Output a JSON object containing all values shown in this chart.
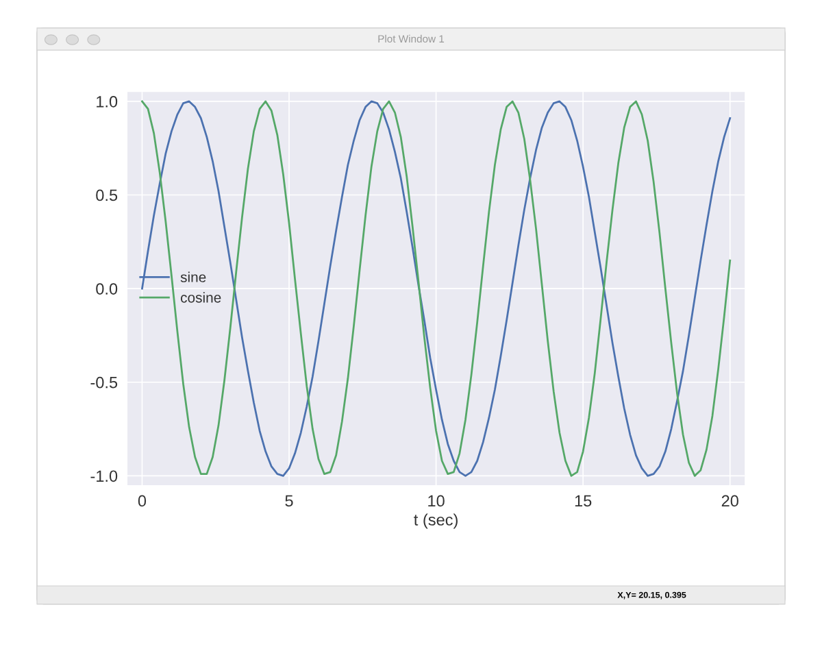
{
  "chart_data": {
    "type": "line",
    "title": "Plot Window 1",
    "xlabel": "t (sec)",
    "annotations": [
      "X,Y= 20.15, 0.395"
    ],
    "x": [
      0,
      0.2,
      0.4,
      0.6,
      0.8,
      1,
      1.2,
      1.4,
      1.6,
      1.8,
      2,
      2.2,
      2.4,
      2.6,
      2.8,
      3,
      3.2,
      3.4,
      3.6,
      3.8,
      4,
      4.2,
      4.4,
      4.6,
      4.8,
      5,
      5.2,
      5.4,
      5.6,
      5.8,
      6,
      6.2,
      6.4,
      6.6,
      6.8,
      7,
      7.2,
      7.4,
      7.6,
      7.8,
      8,
      8.2,
      8.4,
      8.6,
      8.8,
      9,
      9.2,
      9.4,
      9.6,
      9.8,
      10,
      10.2,
      10.4,
      10.6,
      10.8,
      11,
      11.2,
      11.4,
      11.6,
      11.8,
      12,
      12.2,
      12.4,
      12.6,
      12.8,
      13,
      13.2,
      13.4,
      13.6,
      13.8,
      14,
      14.2,
      14.4,
      14.6,
      14.8,
      15,
      15.2,
      15.4,
      15.6,
      15.8,
      16,
      16.2,
      16.4,
      16.6,
      16.8,
      17,
      17.2,
      17.4,
      17.6,
      17.8,
      18,
      18.2,
      18.4,
      18.6,
      18.8,
      19,
      19.2,
      19.4,
      19.6,
      19.8,
      20
    ],
    "series": [
      {
        "name": "sine",
        "color": "#4c72b0",
        "values": [
          0,
          0.2,
          0.39,
          0.56,
          0.72,
          0.84,
          0.93,
          0.99,
          1.0,
          0.97,
          0.91,
          0.81,
          0.68,
          0.52,
          0.33,
          0.14,
          -0.06,
          -0.26,
          -0.44,
          -0.61,
          -0.76,
          -0.87,
          -0.95,
          -0.99,
          -1.0,
          -0.96,
          -0.88,
          -0.77,
          -0.63,
          -0.47,
          -0.28,
          -0.08,
          0.12,
          0.31,
          0.49,
          0.66,
          0.79,
          0.9,
          0.97,
          1.0,
          0.99,
          0.94,
          0.85,
          0.73,
          0.59,
          0.41,
          0.22,
          0.02,
          -0.17,
          -0.37,
          -0.54,
          -0.7,
          -0.83,
          -0.92,
          -0.98,
          -1.0,
          -0.98,
          -0.92,
          -0.82,
          -0.69,
          -0.54,
          -0.36,
          -0.17,
          0.03,
          0.23,
          0.42,
          0.59,
          0.74,
          0.86,
          0.94,
          0.99,
          1.0,
          0.97,
          0.9,
          0.79,
          0.65,
          0.49,
          0.3,
          0.11,
          -0.09,
          -0.29,
          -0.47,
          -0.64,
          -0.78,
          -0.89,
          -0.96,
          -1.0,
          -0.99,
          -0.95,
          -0.87,
          -0.75,
          -0.6,
          -0.44,
          -0.25,
          -0.05,
          0.15,
          0.34,
          0.52,
          0.68,
          0.81,
          0.91
        ]
      },
      {
        "name": "cosine",
        "color": "#55a868",
        "values": [
          1,
          0.96,
          0.83,
          0.62,
          0.36,
          0.07,
          -0.23,
          -0.51,
          -0.74,
          -0.9,
          -0.99,
          -0.99,
          -0.9,
          -0.73,
          -0.49,
          -0.21,
          0.09,
          0.38,
          0.64,
          0.84,
          0.96,
          1.0,
          0.95,
          0.82,
          0.61,
          0.35,
          0.05,
          -0.24,
          -0.52,
          -0.75,
          -0.91,
          -0.99,
          -0.98,
          -0.89,
          -0.71,
          -0.48,
          -0.2,
          0.1,
          0.39,
          0.65,
          0.84,
          0.96,
          1.0,
          0.94,
          0.81,
          0.6,
          0.33,
          0.04,
          -0.26,
          -0.53,
          -0.76,
          -0.92,
          -0.99,
          -0.98,
          -0.88,
          -0.7,
          -0.46,
          -0.18,
          0.12,
          0.41,
          0.66,
          0.85,
          0.97,
          1.0,
          0.94,
          0.8,
          0.58,
          0.32,
          0.02,
          -0.28,
          -0.55,
          -0.77,
          -0.92,
          -1.0,
          -0.98,
          -0.87,
          -0.69,
          -0.45,
          -0.16,
          0.14,
          0.42,
          0.67,
          0.86,
          0.97,
          1.0,
          0.93,
          0.79,
          0.57,
          0.3,
          0.0,
          -0.29,
          -0.56,
          -0.78,
          -0.93,
          -1.0,
          -0.97,
          -0.86,
          -0.68,
          -0.43,
          -0.15,
          0.15
        ]
      }
    ],
    "xlim": [
      -0.5,
      20.5
    ],
    "xticks": [
      0,
      5,
      10,
      15,
      20
    ],
    "ylim": [
      -1.05,
      1.05
    ],
    "yticks": [
      {
        "value": -1,
        "label": "-1.0"
      },
      {
        "value": -0.5,
        "label": "-0.5"
      },
      {
        "value": 0,
        "label": "0.0"
      },
      {
        "value": 0.5,
        "label": "0.5"
      },
      {
        "value": 1,
        "label": "1.0"
      }
    ],
    "grid": true,
    "legend": "left",
    "marker": "none",
    "line_style": "solid"
  }
}
